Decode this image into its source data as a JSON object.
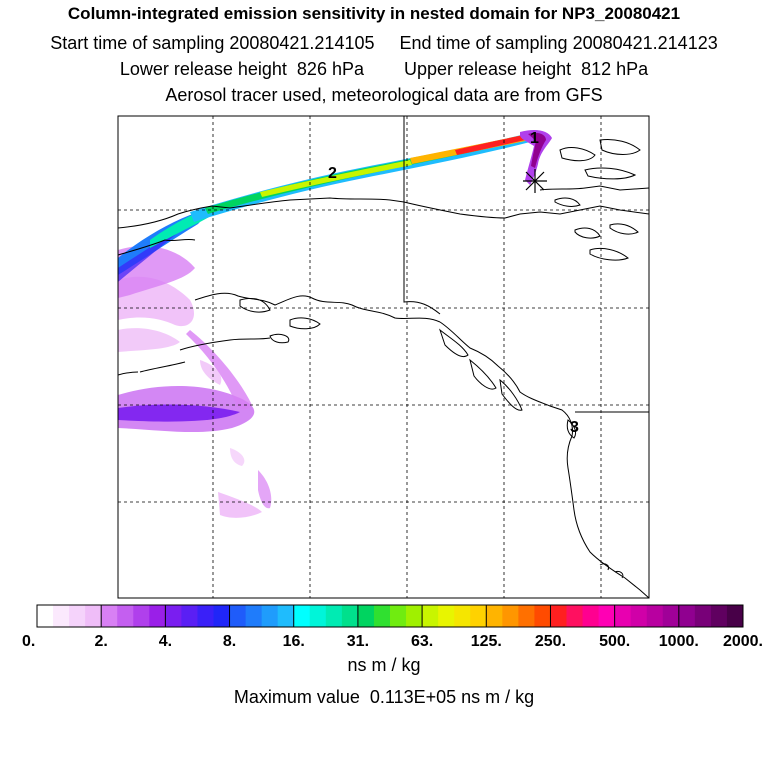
{
  "header": {
    "title": "Column-integrated emission sensitivity in nested domain for NP3_20080421",
    "line2": "Start time of sampling 20080421.214105     End time of sampling 20080421.214123",
    "line3": "Lower release height  826 hPa        Upper release height  812 hPa",
    "line4": "Aerosol tracer used, meteorological data are from GFS"
  },
  "map": {
    "trajectory_markers": [
      "1",
      "2",
      "3"
    ],
    "release_marker": "asterisk"
  },
  "colorbar": {
    "ticks": [
      "0.",
      "2.",
      "4.",
      "8.",
      "16.",
      "31.",
      "63.",
      "125.",
      "250.",
      "500.",
      "1000.",
      "2000."
    ],
    "colors": [
      "#ffffff",
      "#fbe9fd",
      "#f5d3fb",
      "#efbdf8",
      "#d880f4",
      "#c45ff0",
      "#b040ec",
      "#9a1fe8",
      "#7a1ef0",
      "#5a1ff4",
      "#3a20f8",
      "#2026f8",
      "#1f5cfa",
      "#1f7cfb",
      "#1f9cfc",
      "#1fbcfd",
      "#00ffff",
      "#00f5d9",
      "#00ebb3",
      "#00e08c",
      "#00d460",
      "#30e030",
      "#70ec10",
      "#a0f000",
      "#c8f500",
      "#e8f500",
      "#f5e600",
      "#ffd200",
      "#ffb400",
      "#ff9600",
      "#ff7000",
      "#ff4b00",
      "#ff2020",
      "#ff1060",
      "#ff0090",
      "#ff00b4",
      "#e800b0",
      "#d000a8",
      "#b800a0",
      "#a00098",
      "#900090",
      "#780078",
      "#600060",
      "#480048"
    ],
    "units": "ns m / kg",
    "max_value_text": "Maximum value  0.113E+05 ns m / kg"
  }
}
